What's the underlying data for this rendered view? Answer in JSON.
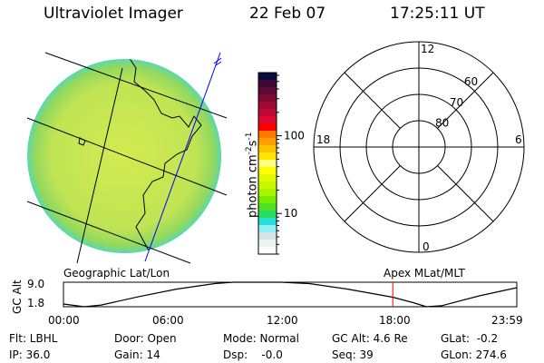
{
  "header": {
    "instrument": "Ultraviolet Imager",
    "date": "22 Feb 07",
    "time": "17:25:11 UT"
  },
  "image": {
    "type": "auroral-uv-image",
    "disk_color": "#c8e650",
    "grid_color": "#000000",
    "track_color": "#0000ff"
  },
  "colorbar": {
    "label": "photon cm",
    "label_exp1": "-2",
    "label_mid": "s",
    "label_exp2": "-1",
    "scale": "log",
    "range": [
      3,
      650
    ],
    "tick_labels": [
      {
        "value": 100,
        "label": "100"
      },
      {
        "value": 10,
        "label": "10"
      }
    ],
    "colors": [
      "#0a0a3c",
      "#3c0a30",
      "#5c0a34",
      "#7e0a34",
      "#9c0a34",
      "#bc0a34",
      "#dc0a34",
      "#ff0000",
      "#ff7800",
      "#ffa000",
      "#ffc400",
      "#ffe400",
      "#ffff80",
      "#ffff00",
      "#e4f800",
      "#c8f800",
      "#a8f400",
      "#78ec00",
      "#50e020",
      "#28dc60",
      "#28e0d8",
      "#90f0f4",
      "#d4e4e4",
      "#e8f4ec",
      "#ffffff"
    ]
  },
  "polar": {
    "mlt_labels": {
      "top": "12",
      "right": "6",
      "bottom": "0",
      "left": "18"
    },
    "lat_rings": [
      {
        "lat": 80,
        "label": "80"
      },
      {
        "lat": 70,
        "label": "70"
      },
      {
        "lat": 60,
        "label": "60"
      },
      {
        "lat": 50,
        "label": ""
      }
    ]
  },
  "labels": {
    "geographic": "Geographic Lat/Lon",
    "apex": "Apex MLat/MLT"
  },
  "chart_data": {
    "type": "line",
    "ylabel": "GC Alt",
    "ylim": [
      1.8,
      9.0
    ],
    "y_tick_labels": [
      "9.0",
      "1.8"
    ],
    "xlim": [
      0,
      23.98
    ],
    "x_tick_labels": [
      "00:00",
      "06:00",
      "12:00",
      "18:00",
      "23:59"
    ],
    "current_time_hours": 17.42,
    "current_marker_color": "#ff0000",
    "points": [
      [
        0,
        2.6
      ],
      [
        1.1,
        1.8
      ],
      [
        2,
        2.3
      ],
      [
        4,
        4.8
      ],
      [
        6,
        7.0
      ],
      [
        8,
        8.6
      ],
      [
        9,
        9.0
      ],
      [
        11.5,
        9.0
      ],
      [
        13,
        8.6
      ],
      [
        15,
        7.0
      ],
      [
        17.42,
        4.6
      ],
      [
        18.5,
        3.0
      ],
      [
        19.2,
        1.8
      ],
      [
        20,
        2.1
      ],
      [
        22,
        5.0
      ],
      [
        23.98,
        7.4
      ]
    ]
  },
  "status": {
    "flt": "Flt: LBHL",
    "ip": "IP: 36.0",
    "door": "Door: Open",
    "gain": "Gain: 14",
    "mode": "Mode: Normal",
    "dsp": "Dsp:    -0.0",
    "gc_alt": "GC Alt: 4.6 Re",
    "seq": "Seq: 39",
    "glat": "GLat:  -0.2",
    "glon": "GLon: 274.6"
  }
}
